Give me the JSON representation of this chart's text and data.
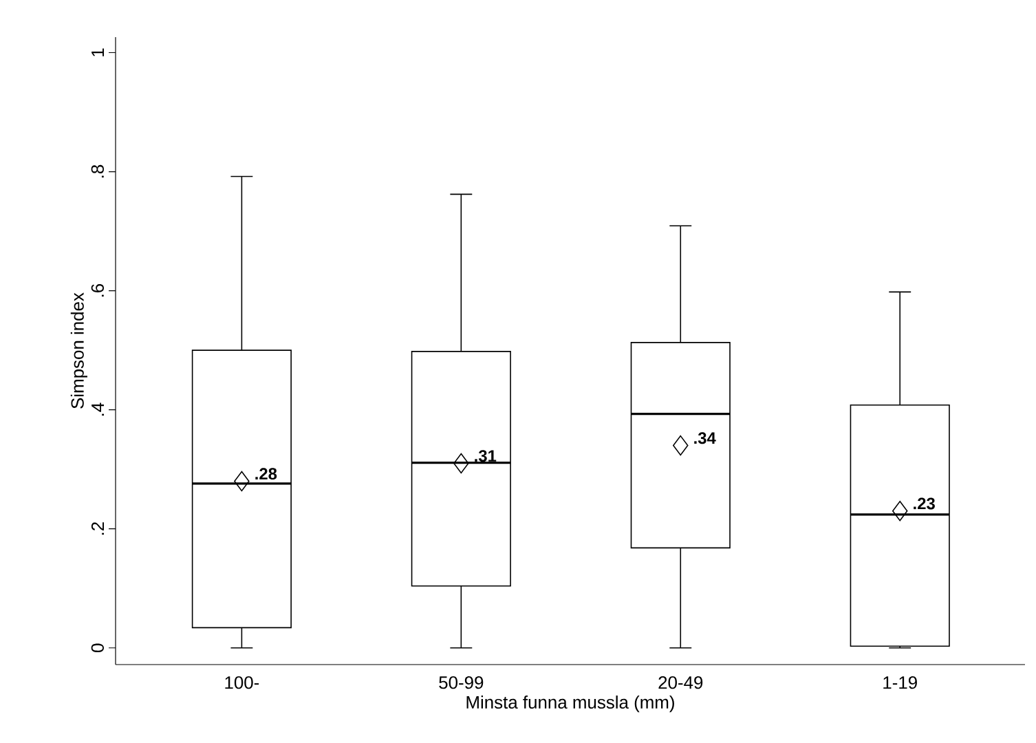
{
  "chart_data": {
    "type": "box",
    "xlabel": "Minsta funna mussla (mm)",
    "ylabel": "Simpson index",
    "categories": [
      "100-",
      "50-99",
      "20-49",
      "1-19"
    ],
    "boxes": [
      {
        "low": 0,
        "q1": 0.034,
        "median": 0.276,
        "q3": 0.5,
        "high": 0.792,
        "mean": 0.28
      },
      {
        "low": 0,
        "q1": 0.104,
        "median": 0.311,
        "q3": 0.498,
        "high": 0.762,
        "mean": 0.31
      },
      {
        "low": 0,
        "q1": 0.168,
        "median": 0.393,
        "q3": 0.513,
        "high": 0.709,
        "mean": 0.34
      },
      {
        "low": 0,
        "q1": 0.003,
        "median": 0.224,
        "q3": 0.408,
        "high": 0.598,
        "mean": 0.23
      }
    ],
    "ylim": [
      -0.028,
      1.026
    ],
    "yticks": [
      {
        "value": 0,
        "label": "0"
      },
      {
        "value": 0.2,
        "label": ".2"
      },
      {
        "value": 0.4,
        "label": ".4"
      },
      {
        "value": 0.6,
        "label": ".6"
      },
      {
        "value": 0.8,
        "label": ".8"
      },
      {
        "value": 1,
        "label": "1"
      }
    ],
    "annotations": [
      ".28",
      ".31",
      ".34",
      ".23"
    ],
    "grid": false
  }
}
